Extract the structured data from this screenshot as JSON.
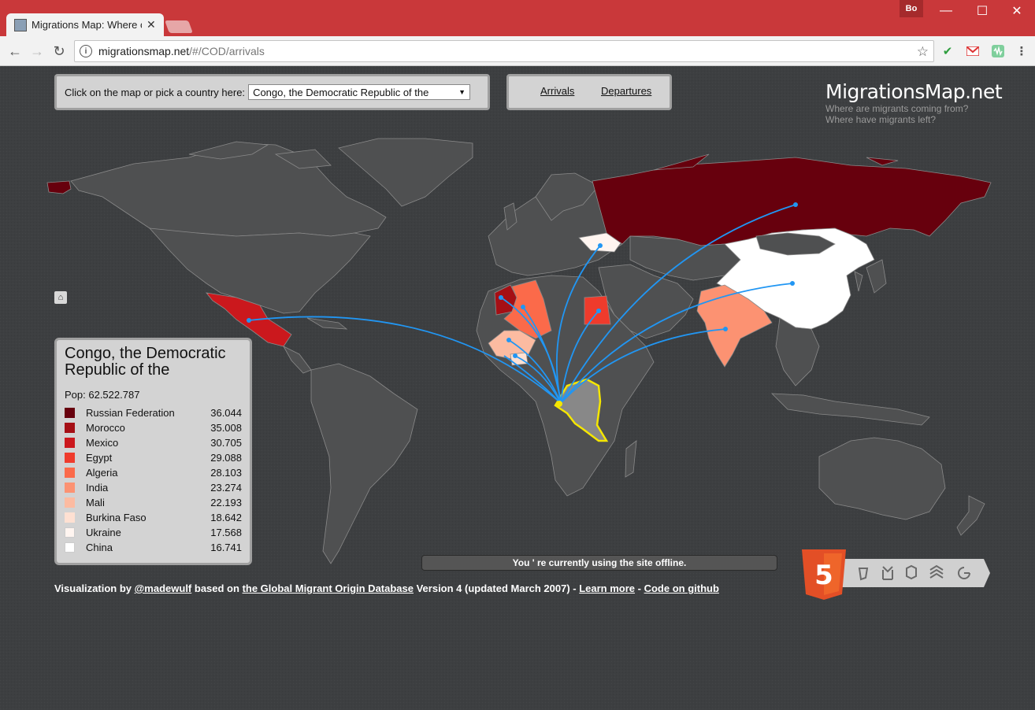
{
  "browser": {
    "tab_title": "Migrations Map: Where c",
    "tab_close": "✕",
    "user_badge": "Bo",
    "minimize": "—",
    "maximize": "☐",
    "close": "✕",
    "back": "←",
    "forward": "→",
    "reload": "↻",
    "info": "i",
    "url_host": "migrationsmap.net",
    "url_path": "/#/COD/arrivals",
    "star": "☆",
    "extensions": [
      "check-icon",
      "gmail-icon",
      "sound-icon",
      "menu-icon"
    ]
  },
  "header": {
    "picker_label": "Click on the map or pick a country here:",
    "selected_country": "Congo, the Democratic Republic of the",
    "select_arrow": "▼",
    "arrivals_label": "Arrivals",
    "departures_label": "Departures",
    "brand_title": "MigrationsMap.net",
    "brand_line1": "Where are migrants coming from?",
    "brand_line2": "Where have migrants left?"
  },
  "home_icon": "⌂",
  "legend": {
    "title": "Congo, the Democratic Republic of the",
    "pop": "Pop: 62.522.787",
    "items": [
      {
        "name": "Russian Federation",
        "value": "36.044",
        "color": "#67000d"
      },
      {
        "name": "Morocco",
        "value": "35.008",
        "color": "#a50f15"
      },
      {
        "name": "Mexico",
        "value": "30.705",
        "color": "#cb181d"
      },
      {
        "name": "Egypt",
        "value": "29.088",
        "color": "#ef3b2c"
      },
      {
        "name": "Algeria",
        "value": "28.103",
        "color": "#fb6a4a"
      },
      {
        "name": "India",
        "value": "23.274",
        "color": "#fc9272"
      },
      {
        "name": "Mali",
        "value": "22.193",
        "color": "#fcbba1"
      },
      {
        "name": "Burkina Faso",
        "value": "18.642",
        "color": "#fee0d2"
      },
      {
        "name": "Ukraine",
        "value": "17.568",
        "color": "#fff5f0"
      },
      {
        "name": "China",
        "value": "16.741",
        "color": "#ffffff"
      }
    ]
  },
  "offline_message": "You ' re currently using the site offline.",
  "footer": {
    "prefix": "Visualization by ",
    "author": "@madewulf",
    "mid": " based on ",
    "db_link": "the Global Migrant Origin Database",
    "version": " Version 4 (updated March 2007) - ",
    "learn_more": "Learn more",
    "sep": " - ",
    "github": "Code on github"
  },
  "html5_badge": {
    "label": "5",
    "icons": [
      "semantics-icon",
      "offline-icon",
      "device-icon",
      "3d-effects-icon",
      "connectivity-icon"
    ]
  },
  "colors": {
    "land": "#4f5051",
    "border": "#8a8a8a",
    "flow": "#2196f3",
    "selected": "#888888",
    "selected_outline": "#f5e600"
  }
}
